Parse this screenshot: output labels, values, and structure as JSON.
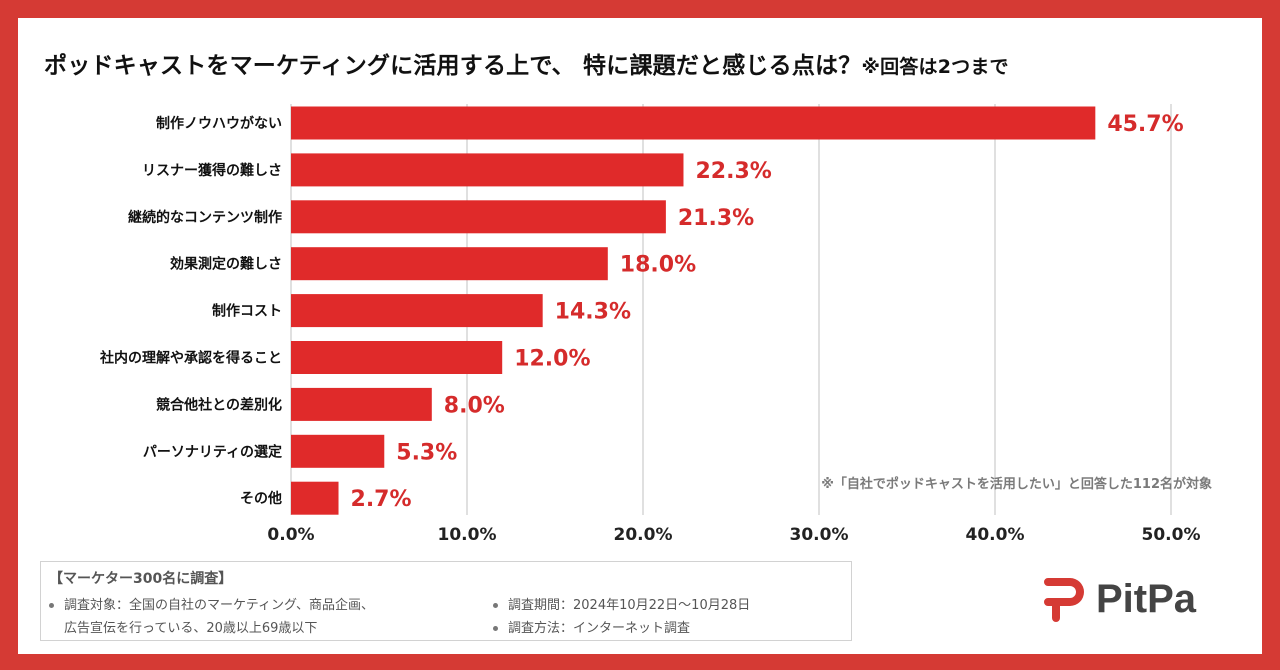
{
  "title": {
    "main": "ポッドキャストをマーケティングに活用する上で、 特に課題だと感じる点は？",
    "note": "※回答は2つまで"
  },
  "chart_data": {
    "type": "bar",
    "orientation": "horizontal",
    "categories": [
      "制作ノウハウがない",
      "リスナー獲得の難しさ",
      "継続的なコンテンツ制作",
      "効果測定の難しさ",
      "制作コスト",
      "社内の理解や承認を得ること",
      "競合他社との差別化",
      "パーソナリティの選定",
      "その他"
    ],
    "values": [
      45.7,
      22.3,
      21.3,
      18.0,
      14.3,
      12.0,
      8.0,
      5.3,
      2.7
    ],
    "value_labels": [
      "45.7%",
      "22.3%",
      "21.3%",
      "18.0%",
      "14.3%",
      "12.0%",
      "8.0%",
      "5.3%",
      "2.7%"
    ],
    "xlim": [
      0,
      50
    ],
    "xticks": [
      0,
      10,
      20,
      30,
      40,
      50
    ],
    "xtick_labels": [
      "0.0%",
      "10.0%",
      "20.0%",
      "30.0%",
      "40.0%",
      "50.0%"
    ],
    "grid": true,
    "colors": {
      "bar": "#e02a2a",
      "label": "#d52b2b",
      "grid": "#d5d5d5"
    }
  },
  "footnote": "※「自社でポッドキャストを活用したい」と回答した112名が対象",
  "survey": {
    "heading": "【マーケター300名に調査】",
    "target_line1": "調査対象：全国の自社のマーケティング、商品企画、",
    "target_line2": "広告宣伝を行っている、20歳以上69歳以下",
    "period": "調査期間：2024年10月22日～10月28日",
    "method": "調査方法：インターネット調査"
  },
  "logo": {
    "text": "PitPa",
    "icon": "pitpa-logo-icon",
    "color": "#d53a34"
  },
  "frame_color": "#d53a34"
}
